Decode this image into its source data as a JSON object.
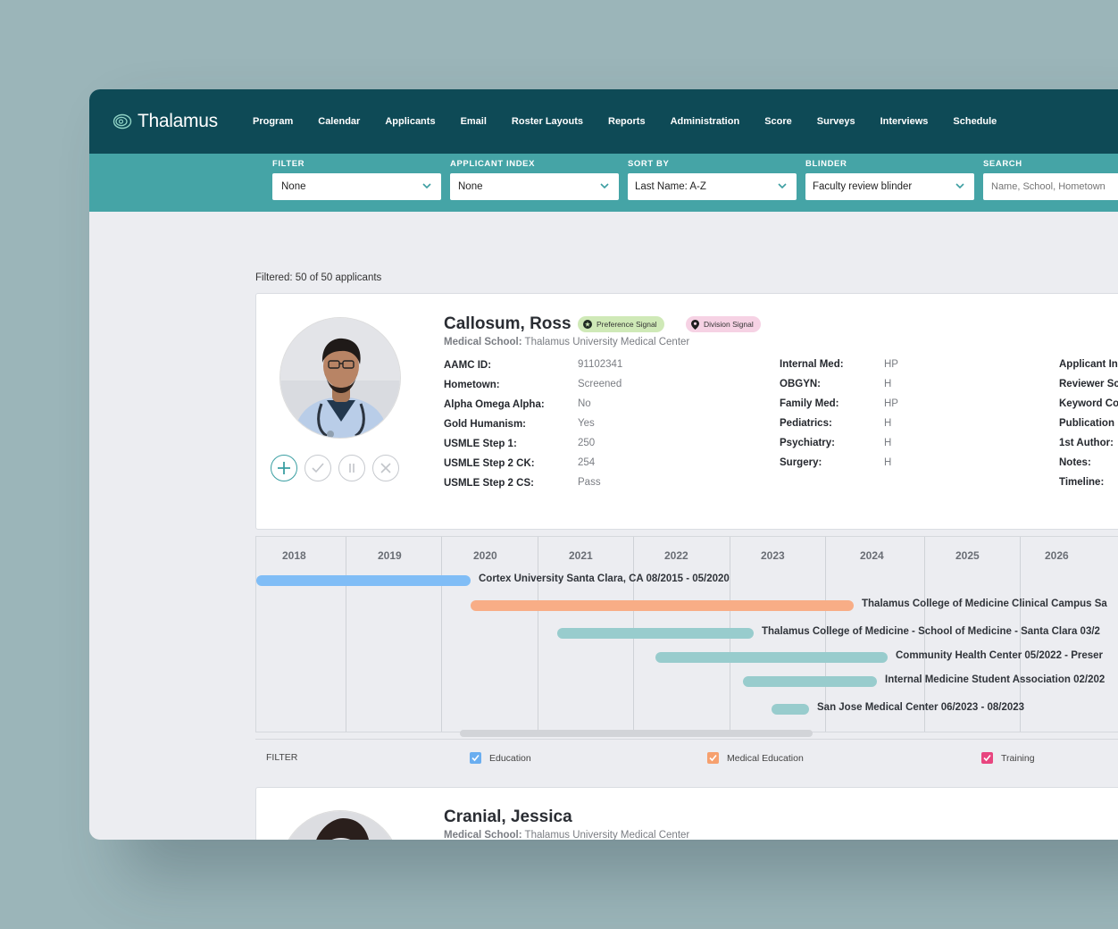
{
  "app": {
    "name": "Thalamus"
  },
  "nav": [
    "Program",
    "Calendar",
    "Applicants",
    "Email",
    "Roster Layouts",
    "Reports",
    "Administration",
    "Score",
    "Surveys",
    "Interviews",
    "Schedule"
  ],
  "filters": {
    "filter": {
      "label": "FILTER",
      "value": "None"
    },
    "applicant_index": {
      "label": "APPLICANT INDEX",
      "value": "None"
    },
    "sort_by": {
      "label": "SORT BY",
      "value": "Last Name: A-Z"
    },
    "blinder": {
      "label": "BLINDER",
      "value": "Faculty review blinder"
    },
    "search": {
      "label": "SEARCH",
      "placeholder": "Name, School, Hometown"
    }
  },
  "filtered_text": "Filtered: 50 of 50 applicants",
  "applicant": {
    "name": "Callosum, Ross",
    "badges": {
      "preference": "Preference Signal",
      "division": "Division Signal"
    },
    "school_label": "Medical School:",
    "school": "Thalamus University Medical Center",
    "fields_col1": [
      {
        "key": "AAMC ID:",
        "value": "91102341"
      },
      {
        "key": "Hometown:",
        "value": "Screened"
      },
      {
        "key": "Alpha Omega Alpha:",
        "value": "No"
      },
      {
        "key": "Gold Humanism:",
        "value": "Yes"
      },
      {
        "key": "USMLE Step 1:",
        "value": "250"
      },
      {
        "key": "USMLE Step 2 CK:",
        "value": "254"
      },
      {
        "key": "USMLE Step 2 CS:",
        "value": "Pass"
      }
    ],
    "fields_col2": [
      {
        "key": "Internal Med:",
        "value": "HP"
      },
      {
        "key": "OBGYN:",
        "value": "H"
      },
      {
        "key": "Family Med:",
        "value": "HP"
      },
      {
        "key": "Pediatrics:",
        "value": "H"
      },
      {
        "key": "Psychiatry:",
        "value": "H"
      },
      {
        "key": "Surgery:",
        "value": "H"
      }
    ],
    "fields_col3": [
      "Applicant In",
      "Reviewer Sc",
      "Keyword Co",
      "Publication",
      "1st Author:",
      "Notes:",
      "Timeline:"
    ]
  },
  "timeline": {
    "years": [
      "2018",
      "2019",
      "2020",
      "2021",
      "2022",
      "2023",
      "2024",
      "2025",
      "2026"
    ],
    "entries": [
      {
        "label": "Cortex University Santa Clara, CA 08/2015 - 05/2020",
        "color": "#80bdf6"
      },
      {
        "label": "Thalamus College of Medicine Clinical Campus Sa",
        "color": "#f8ad86"
      },
      {
        "label": "Thalamus College of Medicine - School of Medicine - Santa Clara 03/2",
        "color": "#98cccd"
      },
      {
        "label": "Community Health Center 05/2022 - Preser",
        "color": "#98cccd"
      },
      {
        "label": "Internal Medicine Student Association 02/202",
        "color": "#98cccd"
      },
      {
        "label": "San Jose Medical Center 06/2023 - 08/2023",
        "color": "#98cccd"
      }
    ]
  },
  "legend": {
    "filter_label": "FILTER",
    "items": [
      {
        "label": "Education",
        "color": "#6aaef0"
      },
      {
        "label": "Medical Education",
        "color": "#f6a06e"
      },
      {
        "label": "Training",
        "color": "#e8457f"
      }
    ]
  },
  "applicant2": {
    "name": "Cranial, Jessica",
    "school_label": "Medical School:",
    "school": "Thalamus University Medical Center"
  }
}
